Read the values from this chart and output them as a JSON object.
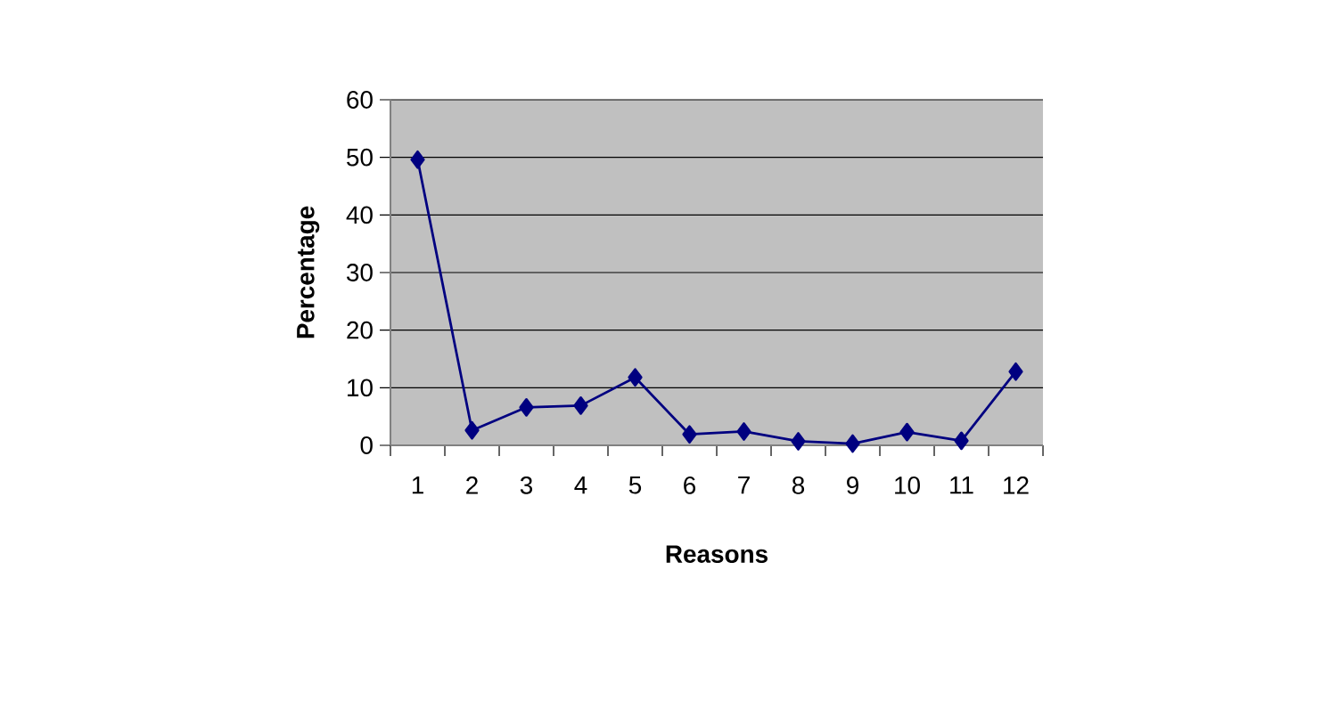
{
  "chart_data": {
    "type": "line",
    "xlabel": "Reasons",
    "ylabel": "Percentage",
    "categories": [
      "1",
      "2",
      "3",
      "4",
      "5",
      "6",
      "7",
      "8",
      "9",
      "10",
      "11",
      "12"
    ],
    "series": [
      {
        "color": "#000080",
        "values": [
          49.6,
          2.6,
          6.6,
          6.9,
          11.8,
          1.9,
          2.4,
          0.7,
          0.3,
          2.3,
          0.8,
          12.8
        ]
      }
    ],
    "ylim": [
      0,
      60
    ],
    "yticks": [
      0,
      10,
      20,
      30,
      40,
      50,
      60
    ],
    "grid": "y",
    "marker": "diamond",
    "line_style": "solid"
  }
}
